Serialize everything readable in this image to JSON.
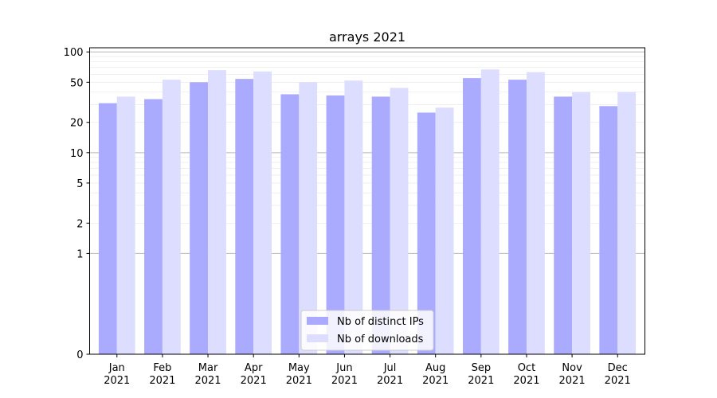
{
  "chart_data": {
    "type": "bar",
    "title": "arrays 2021",
    "xlabel": "",
    "ylabel": "",
    "y_scale": "symlog",
    "ylim": [
      0,
      110
    ],
    "y_ticks": [
      0,
      1,
      2,
      5,
      10,
      20,
      50,
      100
    ],
    "grid": true,
    "legend_position": "lower center",
    "categories": [
      [
        "Jan",
        "2021"
      ],
      [
        "Feb",
        "2021"
      ],
      [
        "Mar",
        "2021"
      ],
      [
        "Apr",
        "2021"
      ],
      [
        "May",
        "2021"
      ],
      [
        "Jun",
        "2021"
      ],
      [
        "Jul",
        "2021"
      ],
      [
        "Aug",
        "2021"
      ],
      [
        "Sep",
        "2021"
      ],
      [
        "Oct",
        "2021"
      ],
      [
        "Nov",
        "2021"
      ],
      [
        "Dec",
        "2021"
      ]
    ],
    "series": [
      {
        "name": "Nb of distinct IPs",
        "color": "#aaaaff",
        "values": [
          31,
          34,
          50,
          54,
          38,
          37,
          36,
          25,
          55,
          53,
          36,
          29
        ]
      },
      {
        "name": "Nb of downloads",
        "color": "#ddddff",
        "values": [
          36,
          53,
          66,
          64,
          50,
          52,
          44,
          28,
          67,
          63,
          40,
          40
        ]
      }
    ]
  }
}
